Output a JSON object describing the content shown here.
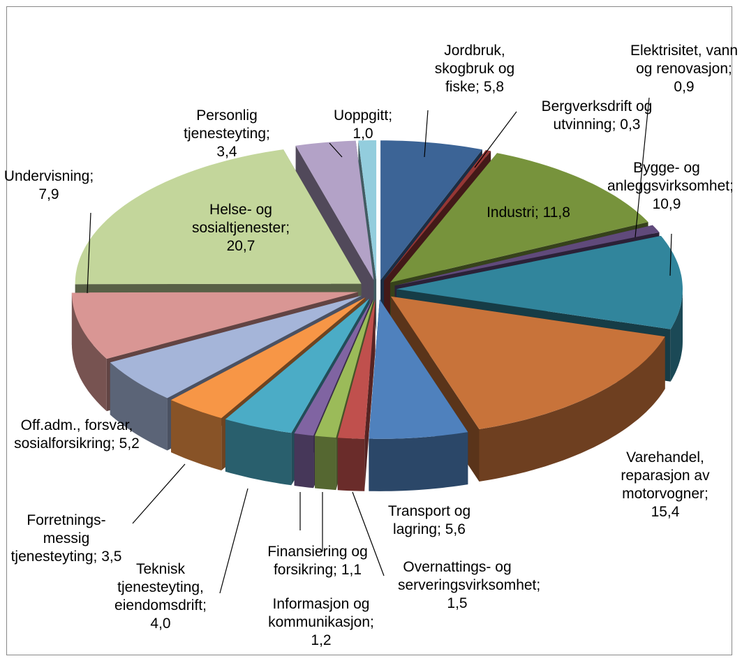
{
  "chart_data": {
    "type": "pie3d",
    "categories": [
      "Jordbruk, skogbruk og fiske",
      "Bergverksdrift og utvinning",
      "Industri",
      "Elektrisitet, vann og renovasjon",
      "Bygge- og anleggsvirksomhet",
      "Varehandel, reparasjon av motorvogner",
      "Transport og lagring",
      "Overnattings- og serveringsvirksomhet",
      "Informasjon og kommunikasjon",
      "Finansiering og forsikring",
      "Teknisk tjenesteyting, eiendomsdrift",
      "Forretnings-messig tjenesteyting",
      "Off.adm., forsvar, sosialforsikring",
      "Undervisning",
      "Helse- og sosialtjenester",
      "Personlig tjenesteyting",
      "Uoppgitt"
    ],
    "values": [
      5.8,
      0.3,
      11.8,
      0.9,
      10.9,
      15.4,
      5.6,
      1.5,
      1.2,
      1.1,
      4.0,
      3.5,
      5.2,
      7.9,
      20.7,
      3.4,
      1.0
    ],
    "value_labels": [
      "5,8",
      "0,3",
      "11,8",
      "0,9",
      "10,9",
      "15,4",
      "5,6",
      "1,5",
      "1,2",
      "1,1",
      "4,0",
      "3,5",
      "5,2",
      "7,9",
      "20,7",
      "3,4",
      "1,0"
    ],
    "colors": [
      "#3c6496",
      "#953735",
      "#77933c",
      "#604a7b",
      "#31859c",
      "#c8733a",
      "#4f81bd",
      "#c0504d",
      "#9bbb59",
      "#8064a2",
      "#4bacc6",
      "#f79646",
      "#a5b5d9",
      "#d99694",
      "#c3d69b",
      "#b3a2c7",
      "#93cddd"
    ]
  }
}
